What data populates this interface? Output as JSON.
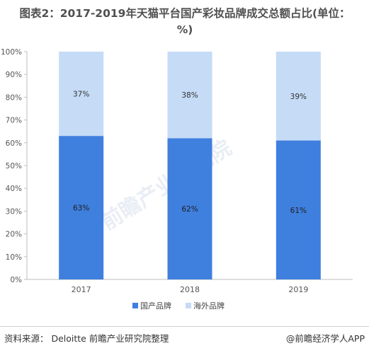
{
  "chart_data": {
    "type": "bar",
    "stacked": true,
    "title": "图表2：2017-2019年天猫平台国产彩妆品牌成交总额占比(单位：%)",
    "categories": [
      "2017",
      "2018",
      "2019"
    ],
    "series": [
      {
        "name": "国产品牌",
        "values": [
          63,
          62,
          61
        ],
        "labels": [
          "63%",
          "62%",
          "61%"
        ],
        "color": "#3f7fde"
      },
      {
        "name": "海外品牌",
        "values": [
          37,
          38,
          39
        ],
        "labels": [
          "37%",
          "38%",
          "39%"
        ],
        "color": "#c5dbf6"
      }
    ],
    "ylim": [
      0,
      100
    ],
    "yticks": [
      "0%",
      "10%",
      "20%",
      "30%",
      "40%",
      "50%",
      "60%",
      "70%",
      "80%",
      "90%",
      "100%"
    ],
    "grid": false,
    "legend_position": "bottom"
  },
  "footer": {
    "source": "资料来源：  Deloitte 前瞻产业研究院整理",
    "credit": "@前瞻经济学人APP"
  },
  "watermark": "前瞻产业研究院"
}
